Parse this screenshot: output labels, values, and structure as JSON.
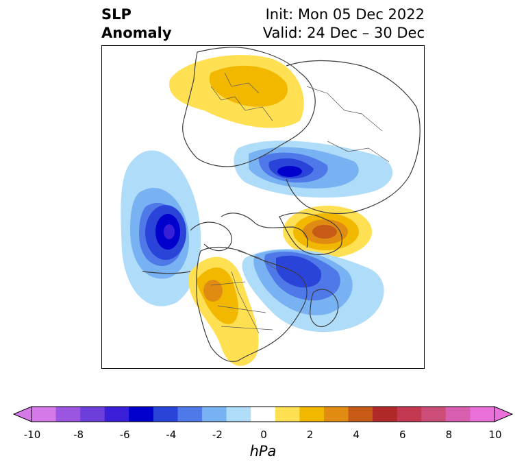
{
  "title": {
    "left_line1": "SLP",
    "left_line2": "Anomaly",
    "right_line1": "Init: Mon 05 Dec 2022",
    "right_line2": "Valid: 24 Dec – 30 Dec"
  },
  "map": {
    "projection": "polar-stereographic",
    "region": "North Pole / North America / Eurasia",
    "features": [
      "coastlines",
      "country-borders",
      "us-state-borders",
      "canada-province-borders"
    ],
    "anomalies": [
      {
        "name": "Aleutian low",
        "sign": "negative",
        "min_hpa": -6,
        "location": "North Pacific"
      },
      {
        "name": "Siberia low",
        "sign": "negative",
        "min_hpa": -6,
        "location": "central Siberia"
      },
      {
        "name": "Canada/Hudson low",
        "sign": "negative",
        "min_hpa": -4,
        "location": "eastern Canada"
      },
      {
        "name": "Greenland high",
        "sign": "positive",
        "max_hpa": 5,
        "location": "Greenland"
      },
      {
        "name": "Europe high",
        "sign": "positive",
        "max_hpa": 2,
        "location": "Europe"
      },
      {
        "name": "Western US high",
        "sign": "positive",
        "max_hpa": 3,
        "location": "western US"
      }
    ]
  },
  "colorbar": {
    "unit": "hPa",
    "ticks": [
      "-10",
      "-8",
      "-6",
      "-4",
      "-2",
      "0",
      "2",
      "4",
      "6",
      "8",
      "10"
    ],
    "colors": [
      "#d578e8",
      "#9b55e0",
      "#6c3fdb",
      "#3a1fd8",
      "#0000cc",
      "#2a43d8",
      "#4f78e8",
      "#78b2f2",
      "#afdcf8",
      "#ffffff",
      "#ffe052",
      "#f2b800",
      "#e08c12",
      "#c85a18",
      "#b02828",
      "#c23850",
      "#cc4d78",
      "#d85fb0",
      "#e870d8"
    ],
    "extend": "both"
  }
}
